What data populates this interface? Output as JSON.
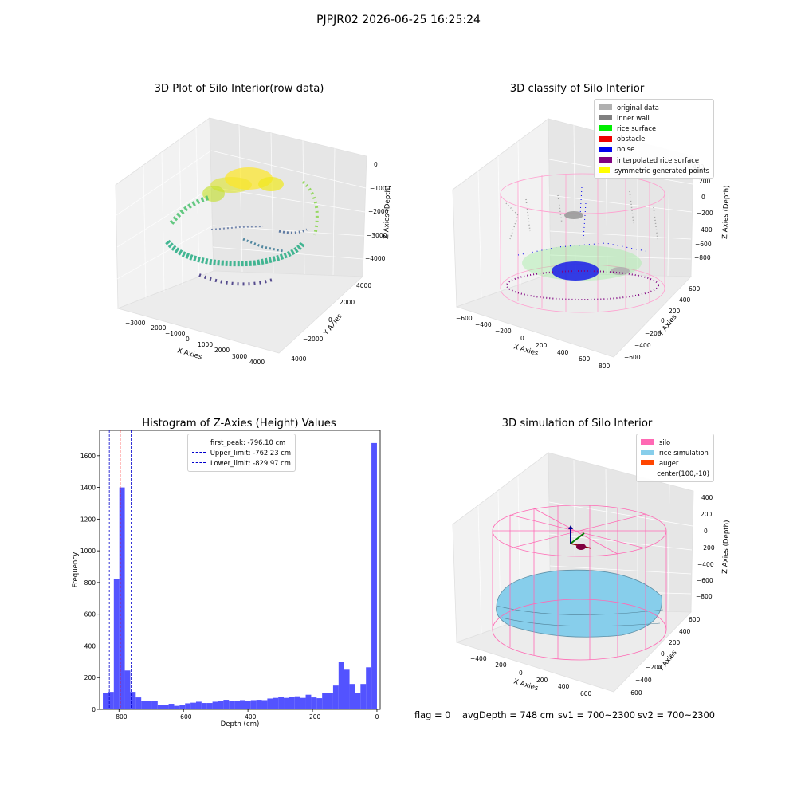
{
  "suptitle": "PJPJR02 2026-06-25 16:25:24",
  "footer": {
    "flag": "flag = 0",
    "avg_depth": "avgDepth = 748 cm",
    "sv1": "sv1 = 700~2300",
    "sv2": "sv2 = 700~2300"
  },
  "chart_data": [
    {
      "type": "scatter",
      "title": "3D Plot of Silo Interior(row data)",
      "xlabel": "X Axies",
      "ylabel": "Y Axies",
      "zlabel": "Z Axies (Depth)",
      "x_ticks": [
        "−3000",
        "−2000",
        "−1000",
        "0",
        "1000",
        "2000",
        "3000",
        "4000"
      ],
      "y_ticks": [
        "−4000",
        "−2000",
        "0",
        "2000",
        "4000"
      ],
      "z_ticks": [
        "0",
        "−1000",
        "−2000",
        "−3000",
        "−4000"
      ],
      "xlim": [
        -3500,
        4500
      ],
      "ylim": [
        -4500,
        4500
      ],
      "zlim": [
        -4500,
        0
      ],
      "colormap": "viridis"
    },
    {
      "type": "scatter",
      "title": "3D classify of Silo Interior",
      "xlabel": "X Axies",
      "ylabel": "Y Axies",
      "zlabel": "Z Axies (Depth)",
      "x_ticks": [
        "−600",
        "−400",
        "−200",
        "0",
        "200",
        "400",
        "600",
        "800"
      ],
      "y_ticks": [
        "−600",
        "−400",
        "−200",
        "0",
        "200",
        "400",
        "600"
      ],
      "z_ticks": [
        "200",
        "0",
        "−200",
        "−400",
        "−600",
        "−800"
      ],
      "legend": [
        {
          "label": "original data",
          "color": "#b0b0b0"
        },
        {
          "label": "inner wall",
          "color": "#808080"
        },
        {
          "label": "rice surface",
          "color": "#00ee00"
        },
        {
          "label": "obstacle",
          "color": "#ee0000"
        },
        {
          "label": "noise",
          "color": "#0000ee"
        },
        {
          "label": "interpolated rice surface",
          "color": "#800080"
        },
        {
          "label": "symmetric generated points",
          "color": "#ffff00"
        }
      ]
    },
    {
      "type": "bar",
      "title": "Histogram of Z-Axies (Height) Values",
      "xlabel": "Depth (cm)",
      "ylabel": "Frequency",
      "xlim": [
        -860,
        10
      ],
      "ylim": [
        0,
        1760
      ],
      "x_ticks": [
        -800,
        -600,
        -400,
        -200,
        0
      ],
      "x_tick_labels": [
        "−800",
        "−600",
        "−400",
        "−200",
        "0"
      ],
      "y_ticks": [
        0,
        200,
        400,
        600,
        800,
        1000,
        1200,
        1400,
        1600
      ],
      "y_tick_labels": [
        "0",
        "200",
        "400",
        "600",
        "800",
        "1000",
        "1200",
        "1400",
        "1600"
      ],
      "bar_color": "#4040ff",
      "bin_edges": [
        -850,
        -833,
        -816,
        -799,
        -782,
        -765,
        -748,
        -731,
        -714,
        -697,
        -680,
        -663,
        -646,
        -629,
        -612,
        -595,
        -578,
        -561,
        -544,
        -527,
        -510,
        -493,
        -476,
        -459,
        -442,
        -425,
        -408,
        -391,
        -374,
        -357,
        -340,
        -323,
        -306,
        -289,
        -272,
        -255,
        -238,
        -221,
        -204,
        -187,
        -170,
        -153,
        -136,
        -119,
        -102,
        -85,
        -68,
        -51,
        -34,
        -17,
        0
      ],
      "counts": [
        105,
        110,
        820,
        1400,
        245,
        110,
        75,
        55,
        55,
        55,
        30,
        30,
        35,
        22,
        30,
        38,
        42,
        48,
        40,
        40,
        48,
        52,
        60,
        55,
        52,
        58,
        55,
        58,
        60,
        58,
        68,
        72,
        78,
        72,
        78,
        82,
        72,
        92,
        75,
        70,
        105,
        105,
        150,
        300,
        250,
        160,
        105,
        160,
        265,
        1680
      ],
      "vlines": [
        {
          "label": "first_peak: -796.10 cm",
          "x": -796.1,
          "color": "#ff0000"
        },
        {
          "label": "Upper_limit: -762.23 cm",
          "x": -762.23,
          "color": "#0000cc"
        },
        {
          "label": "Lower_limit: -829.97 cm",
          "x": -829.97,
          "color": "#0000cc"
        }
      ]
    },
    {
      "type": "surface",
      "title": "3D simulation of Silo Interior",
      "xlabel": "X Axies",
      "ylabel": "Y Axies",
      "zlabel": "Z Axies (Depth)",
      "x_ticks": [
        "−400",
        "−200",
        "0",
        "200",
        "400",
        "600"
      ],
      "y_ticks": [
        "−600",
        "−400",
        "−200",
        "0",
        "200",
        "400",
        "600"
      ],
      "z_ticks": [
        "400",
        "200",
        "0",
        "−200",
        "−400",
        "−600",
        "−800"
      ],
      "legend": [
        {
          "label": "silo",
          "color": "#ff69b4"
        },
        {
          "label": "rice simulation",
          "color": "#87ceeb"
        },
        {
          "label": "auger",
          "color": "#ff4500"
        },
        {
          "label": "center(100,-10)",
          "color": "#ffffff"
        }
      ]
    }
  ]
}
